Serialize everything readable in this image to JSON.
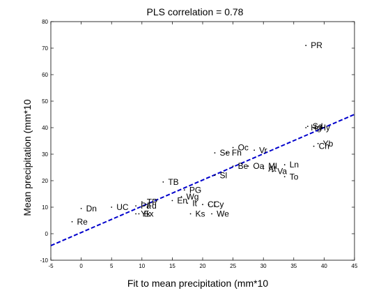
{
  "chart_data": {
    "type": "scatter",
    "title": "PLS correlation = 0.78",
    "xlabel": "Fit to mean precipitation (mm*10",
    "ylabel": "Mean precipitation (mm*10",
    "xlim": [
      -5,
      45
    ],
    "ylim": [
      -10,
      80
    ],
    "xticks": [
      -5,
      0,
      5,
      10,
      15,
      20,
      25,
      30,
      35,
      40,
      45
    ],
    "yticks": [
      -10,
      0,
      10,
      20,
      30,
      40,
      50,
      60,
      70,
      80
    ],
    "grid": false,
    "fit_line": {
      "x": [
        -5,
        45
      ],
      "y": [
        -4.5,
        45
      ],
      "color": "#0000cc",
      "style": "dashed"
    },
    "points": [
      {
        "label": "PR",
        "x": 37.0,
        "y": 71.0
      },
      {
        "label": "Sd",
        "x": 37.3,
        "y": 40.5
      },
      {
        "label": "Hg",
        "x": 37.0,
        "y": 40.0
      },
      {
        "label": "Hy",
        "x": 38.5,
        "y": 40.0
      },
      {
        "label": "Yb",
        "x": 39.0,
        "y": 34.0
      },
      {
        "label": "Ch",
        "x": 38.3,
        "y": 33.0
      },
      {
        "label": "Oc",
        "x": 25.0,
        "y": 32.5
      },
      {
        "label": "Se",
        "x": 22.0,
        "y": 30.5
      },
      {
        "label": "Fh",
        "x": 24.0,
        "y": 30.5
      },
      {
        "label": "Vr",
        "x": 28.5,
        "y": 31.5
      },
      {
        "label": "Ln",
        "x": 33.5,
        "y": 26.0
      },
      {
        "label": "Be",
        "x": 25.0,
        "y": 25.5
      },
      {
        "label": "Oa",
        "x": 27.5,
        "y": 25.5
      },
      {
        "label": "Ml",
        "x": 30.0,
        "y": 25.5
      },
      {
        "label": "At",
        "x": 30.0,
        "y": 24.5
      },
      {
        "label": "Va",
        "x": 31.5,
        "y": 23.5
      },
      {
        "label": "To",
        "x": 33.5,
        "y": 21.5
      },
      {
        "label": "Sl",
        "x": 22.0,
        "y": 22.0
      },
      {
        "label": "TB",
        "x": 13.5,
        "y": 19.5
      },
      {
        "label": "PG",
        "x": 17.0,
        "y": 16.5
      },
      {
        "label": "Wg",
        "x": 16.5,
        "y": 14.0
      },
      {
        "label": "En",
        "x": 15.0,
        "y": 12.5
      },
      {
        "label": "It",
        "x": 17.5,
        "y": 11.5
      },
      {
        "label": "Cl",
        "x": 20.0,
        "y": 11.0
      },
      {
        "label": "Cy",
        "x": 21.0,
        "y": 11.0
      },
      {
        "label": "Ks",
        "x": 18.0,
        "y": 7.5
      },
      {
        "label": "We",
        "x": 21.5,
        "y": 7.5
      },
      {
        "label": "TP",
        "x": 10.0,
        "y": 12.0
      },
      {
        "label": "Pa",
        "x": 9.0,
        "y": 10.5
      },
      {
        "label": "Fd",
        "x": 10.0,
        "y": 10.5
      },
      {
        "label": "UC",
        "x": 5.0,
        "y": 10.0
      },
      {
        "label": "Dn",
        "x": 0.0,
        "y": 9.5
      },
      {
        "label": "Yk",
        "x": 9.0,
        "y": 7.5
      },
      {
        "label": "Ex",
        "x": 9.5,
        "y": 7.5
      },
      {
        "label": "Re",
        "x": -1.5,
        "y": 4.5
      }
    ]
  }
}
